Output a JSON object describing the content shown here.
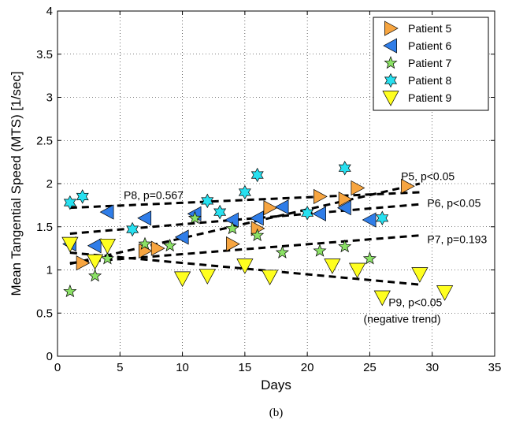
{
  "chart_data": {
    "type": "scatter",
    "xlabel": "Days",
    "ylabel": "Mean Tangential Speed (MTS) [1/sec]",
    "xlim": [
      0,
      35
    ],
    "ylim": [
      0,
      4
    ],
    "xticks": [
      "0",
      "5",
      "10",
      "15",
      "20",
      "25",
      "30",
      "35"
    ],
    "yticks": [
      "0",
      "0.5",
      "1",
      "1.5",
      "2",
      "2.5",
      "3",
      "3.5",
      "4"
    ],
    "grid": "dotted",
    "legend_position": "top-right",
    "caption": "(b)",
    "series": [
      {
        "name": "Patient 5",
        "marker": "triangle-right",
        "color": "#f7a540",
        "x": [
          2,
          7,
          8,
          14,
          16,
          17,
          21,
          23,
          24,
          28
        ],
        "y": [
          1.08,
          1.22,
          1.25,
          1.3,
          1.48,
          1.72,
          1.85,
          1.82,
          1.95,
          1.97
        ]
      },
      {
        "name": "Patient 6",
        "marker": "triangle-left",
        "color": "#2f7de8",
        "x": [
          1,
          3,
          4,
          7,
          10,
          11,
          14,
          16,
          18,
          21,
          23,
          25
        ],
        "y": [
          1.3,
          1.28,
          1.67,
          1.6,
          1.38,
          1.65,
          1.58,
          1.6,
          1.73,
          1.65,
          1.72,
          1.58
        ]
      },
      {
        "name": "Patient 7",
        "marker": "star5",
        "color": "#8be265",
        "x": [
          1,
          3,
          4,
          7,
          9,
          11,
          14,
          16,
          18,
          21,
          23,
          25
        ],
        "y": [
          0.75,
          0.93,
          1.13,
          1.3,
          1.28,
          1.6,
          1.48,
          1.4,
          1.2,
          1.22,
          1.27,
          1.13
        ]
      },
      {
        "name": "Patient 8",
        "marker": "star6",
        "color": "#27e0f0",
        "x": [
          1,
          2,
          6,
          12,
          13,
          15,
          16,
          20,
          23,
          26
        ],
        "y": [
          1.78,
          1.85,
          1.47,
          1.8,
          1.67,
          1.9,
          2.1,
          1.66,
          2.18,
          1.6
        ]
      },
      {
        "name": "Patient 9",
        "marker": "triangle-down",
        "color": "#ffff1f",
        "x": [
          1,
          3,
          4,
          10,
          12,
          15,
          17,
          22,
          24,
          26,
          29,
          31
        ],
        "y": [
          1.3,
          1.1,
          1.28,
          0.9,
          0.93,
          1.05,
          0.92,
          1.05,
          1.0,
          0.68,
          0.95,
          0.74
        ]
      }
    ],
    "trend_lines": [
      {
        "x": [
          1,
          29
        ],
        "y": [
          1.72,
          1.9
        ]
      },
      {
        "x": [
          1,
          29
        ],
        "y": [
          1.07,
          2.0
        ]
      },
      {
        "x": [
          1,
          29
        ],
        "y": [
          1.42,
          1.76
        ]
      },
      {
        "x": [
          1,
          29
        ],
        "y": [
          1.08,
          1.4
        ]
      },
      {
        "x": [
          1,
          29
        ],
        "y": [
          1.2,
          0.83
        ]
      }
    ],
    "annotations": [
      {
        "text": "P8, p=0.567",
        "x": 5.3,
        "y": 1.82,
        "anchor": "start"
      },
      {
        "text": "P5, p<0.05",
        "x": 27.5,
        "y": 2.04,
        "anchor": "start"
      },
      {
        "text": "P6, p<0.05",
        "x": 29.6,
        "y": 1.73,
        "anchor": "start"
      },
      {
        "text": "P7, p=0.193",
        "x": 29.6,
        "y": 1.31,
        "anchor": "start"
      },
      {
        "text": "P9, p<0.05",
        "x": 26.5,
        "y": 0.58,
        "anchor": "start"
      },
      {
        "text": "(negative trend)",
        "x": 24.5,
        "y": 0.39,
        "anchor": "start"
      }
    ]
  }
}
